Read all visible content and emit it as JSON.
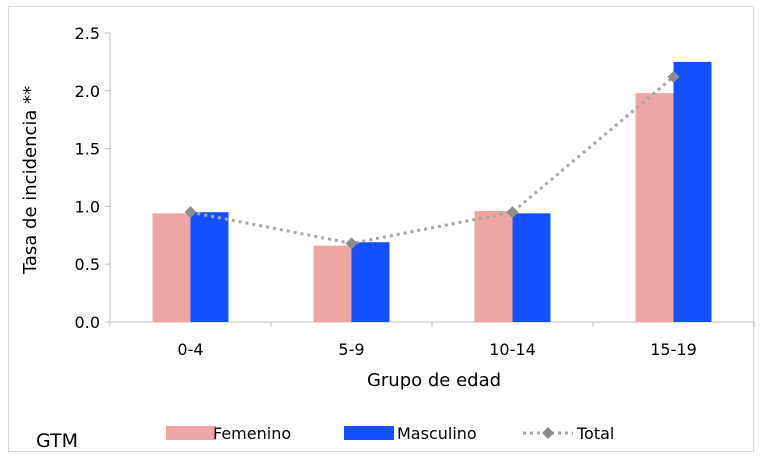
{
  "chart_data": {
    "type": "bar",
    "categories": [
      "0-4",
      "5-9",
      "10-14",
      "15-19"
    ],
    "series": [
      {
        "name": "Femenino",
        "values": [
          0.94,
          0.66,
          0.96,
          1.98
        ],
        "color": "#f0a5a5",
        "kind": "bar"
      },
      {
        "name": "Masculino",
        "values": [
          0.95,
          0.69,
          0.94,
          2.25
        ],
        "color": "#1450ff",
        "kind": "bar"
      },
      {
        "name": "Total",
        "values": [
          0.95,
          0.68,
          0.95,
          2.12
        ],
        "color": "#a6a6a6",
        "kind": "line-dotted-diamond"
      }
    ],
    "xlabel": "Grupo de edad",
    "ylabel": "Tasa de incidencia **",
    "ylim": [
      0,
      2.5
    ],
    "yticks": [
      "0.0",
      "0.5",
      "1.0",
      "1.5",
      "2.0",
      "2.5"
    ],
    "grid": false,
    "legend_position": "bottom"
  },
  "country_label": "GTM"
}
